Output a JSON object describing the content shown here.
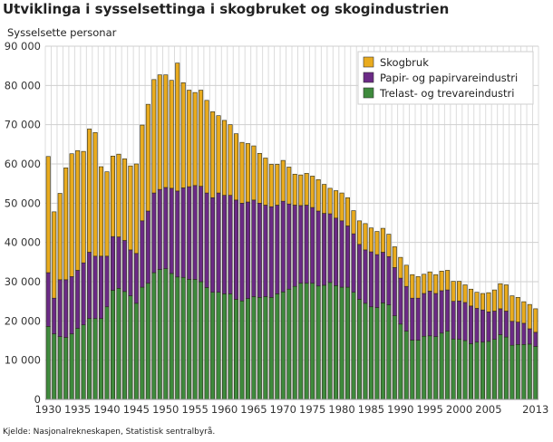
{
  "chart_data": {
    "type": "bar",
    "stacked": true,
    "title": "Utviklinga i sysselsettinga i skogbruket og skogindustrien",
    "ylabel": "Sysselsette personar",
    "xlabel": "",
    "ylim": [
      0,
      90000
    ],
    "yticks": [
      "0",
      "10 000",
      "20 000",
      "30 000",
      "40 000",
      "50 000",
      "60 000",
      "70 000",
      "80 000",
      "90 000"
    ],
    "xticks": [
      "1930",
      "1935",
      "1940",
      "1945",
      "1950",
      "1955",
      "1960",
      "1965",
      "1970",
      "1975",
      "1980",
      "1985",
      "1990",
      "1995",
      "2000",
      "2005",
      "2013"
    ],
    "grid": true,
    "legend_position": "top-right",
    "x_start": 1930,
    "x_end": 2013,
    "series": [
      {
        "name": "Trelast- og trevareindustri",
        "color": "#3e8a3c",
        "values": [
          18600,
          16700,
          16000,
          15800,
          16700,
          18100,
          19000,
          20600,
          20600,
          20600,
          23600,
          27800,
          28300,
          27500,
          26400,
          24500,
          28600,
          29600,
          32300,
          33100,
          33300,
          32100,
          31200,
          31100,
          30600,
          30600,
          30000,
          28500,
          27300,
          27300,
          26900,
          26900,
          25500,
          25100,
          25700,
          26200,
          26000,
          26200,
          26000,
          26900,
          27400,
          28100,
          28800,
          29600,
          29600,
          29600,
          28900,
          29100,
          29800,
          29000,
          28600,
          28600,
          27300,
          25500,
          24500,
          23600,
          23400,
          24600,
          24100,
          21300,
          19200,
          17400,
          15100,
          15100,
          16100,
          16200,
          16000,
          16900,
          17400,
          15400,
          15300,
          15000,
          14200,
          14600,
          14600,
          14800,
          15300,
          16500,
          15900,
          13800,
          14000,
          14000,
          14100,
          13500
        ]
      },
      {
        "name": "Papir- og papirvareindustri",
        "color": "#6b2a86",
        "values": [
          13700,
          9100,
          14500,
          14700,
          14600,
          14800,
          15800,
          16900,
          15900,
          15900,
          12900,
          13700,
          13100,
          13000,
          11700,
          12700,
          16900,
          18400,
          20300,
          20400,
          20700,
          21700,
          21900,
          22800,
          23600,
          23900,
          24300,
          24100,
          24100,
          25300,
          25100,
          25100,
          25300,
          24900,
          24600,
          24600,
          24000,
          23300,
          23100,
          22600,
          23100,
          21700,
          20700,
          19800,
          19900,
          19300,
          19100,
          18300,
          17500,
          17200,
          16900,
          15600,
          14900,
          14000,
          13600,
          14000,
          13500,
          12900,
          12300,
          12300,
          11700,
          11400,
          10700,
          10700,
          10900,
          11400,
          11000,
          10800,
          10500,
          9600,
          9800,
          9700,
          9600,
          8600,
          8200,
          7500,
          7200,
          6600,
          6600,
          6100,
          5700,
          5400,
          3900,
          3600
        ]
      },
      {
        "name": "Skogbruk",
        "color": "#e9ab1e",
        "values": [
          29600,
          22000,
          22000,
          28500,
          31300,
          30500,
          28400,
          31400,
          31500,
          22800,
          21500,
          20500,
          21100,
          20800,
          21400,
          22800,
          24400,
          27200,
          28900,
          29200,
          28700,
          27500,
          32600,
          26800,
          24600,
          23700,
          24500,
          23600,
          21900,
          19700,
          19100,
          18000,
          16900,
          15500,
          14900,
          13800,
          12700,
          12000,
          10800,
          10400,
          10400,
          9400,
          7900,
          7800,
          8100,
          8000,
          8000,
          7400,
          6500,
          7000,
          7100,
          7200,
          5900,
          6000,
          6700,
          6100,
          5900,
          6100,
          5700,
          5300,
          5300,
          5400,
          6000,
          5500,
          4900,
          4900,
          4800,
          5000,
          5000,
          5100,
          5000,
          4500,
          4300,
          4100,
          4200,
          4900,
          5400,
          6400,
          6700,
          6500,
          6300,
          5500,
          6200,
          6000
        ]
      }
    ],
    "legend_order": [
      "Skogbruk",
      "Papir- og papirvareindustri",
      "Trelast- og trevareindustri"
    ]
  },
  "source": "Kjelde: Nasjonalrekneskapen, Statistisk sentralbyrå."
}
